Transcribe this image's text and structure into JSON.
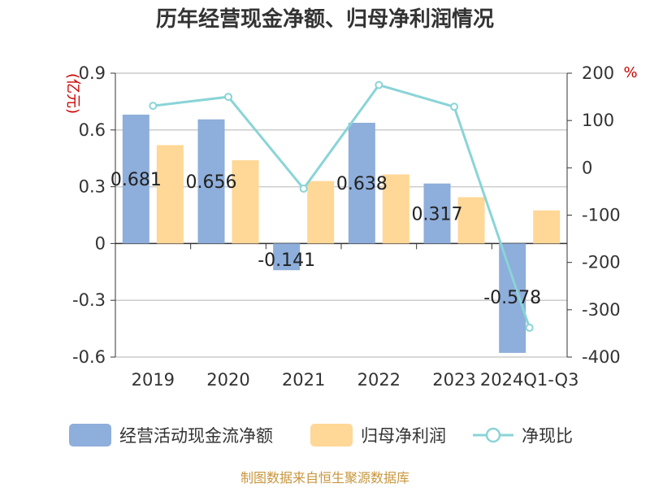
{
  "chart_data": {
    "type": "bar",
    "title": "历年经营现金净额、归母净利润情况",
    "categories": [
      "2019",
      "2020",
      "2021",
      "2022",
      "2023",
      "2024Q1-Q3"
    ],
    "series": [
      {
        "name": "经营活动现金流净额",
        "type": "bar",
        "axis": "left",
        "color": "#8eaedb",
        "values": [
          0.681,
          0.656,
          -0.141,
          0.638,
          0.317,
          -0.578
        ],
        "labels": [
          "0.681",
          "0.656",
          "-0.141",
          "0.638",
          "0.317",
          "-0.578"
        ]
      },
      {
        "name": "归母净利润",
        "type": "bar",
        "axis": "left",
        "color": "#ffd797",
        "values": [
          0.52,
          0.44,
          0.33,
          0.365,
          0.245,
          0.175
        ]
      },
      {
        "name": "净现比",
        "type": "line",
        "axis": "right",
        "color": "#8ad4d7",
        "values": [
          131,
          150,
          -44,
          175,
          129,
          -338
        ]
      }
    ],
    "y_left": {
      "unit": "(亿元)",
      "ylim": [
        -0.6,
        0.9
      ],
      "ticks": [
        "0.9",
        "0.6",
        "0.3",
        "0",
        "-0.3",
        "-0.6"
      ]
    },
    "y_right": {
      "unit": "%",
      "ylim": [
        -400,
        200
      ],
      "ticks": [
        "200",
        "100",
        "0",
        "-100",
        "-200",
        "-300",
        "-400"
      ]
    },
    "grid": true,
    "legend_position": "bottom",
    "colors": {
      "left_unit": "#cc0000",
      "source": "#c8963e"
    }
  },
  "source_text": "制图数据来自恒生聚源数据库"
}
